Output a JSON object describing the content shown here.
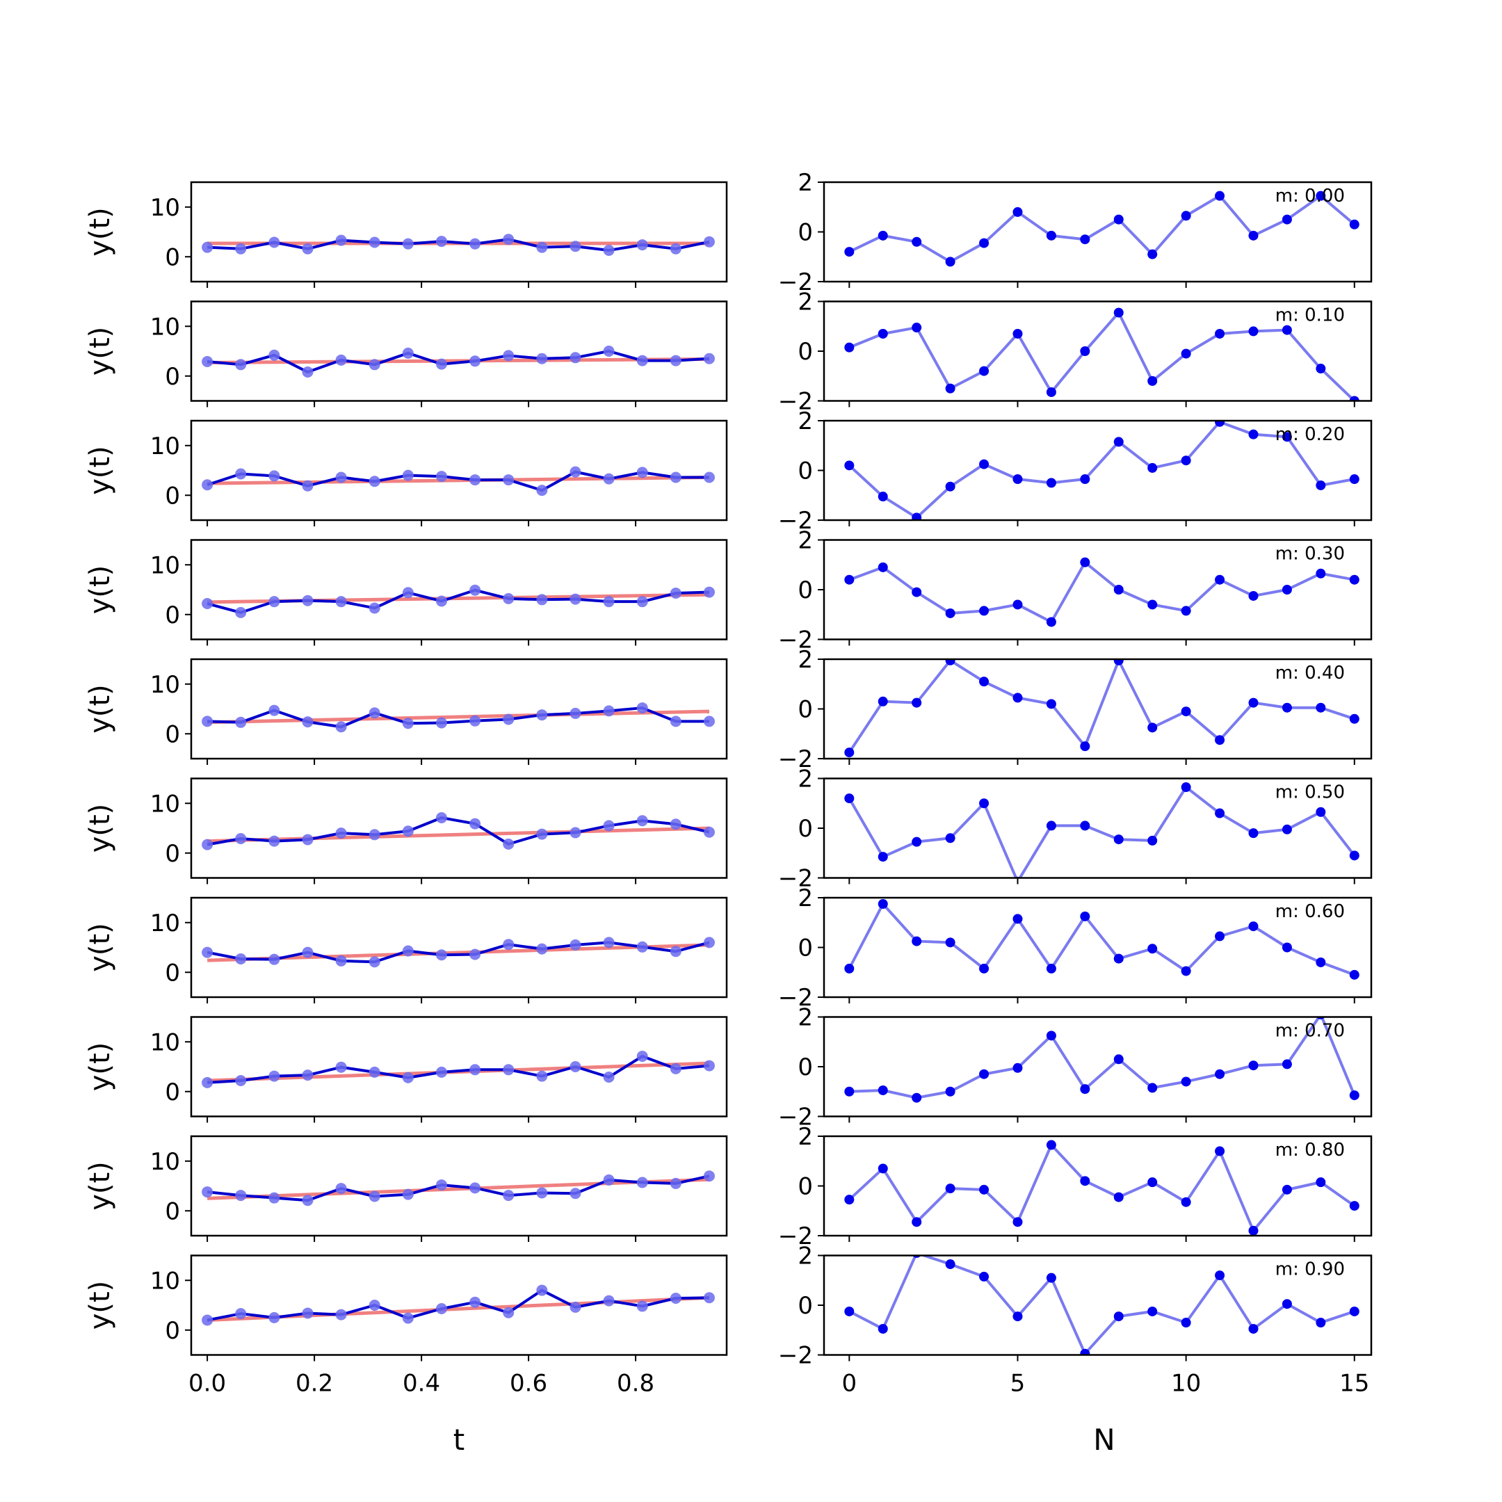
{
  "chart_data": {
    "type": "line",
    "left_panel": {
      "xlabel": "t",
      "ylabel": "y(t)",
      "xlim": [
        -0.03,
        0.97
      ],
      "ylim": [
        -5,
        15
      ],
      "xticks": [
        "0.0",
        "0.2",
        "0.4",
        "0.6",
        "0.8"
      ],
      "yticks": [
        "0",
        "10"
      ],
      "x": [
        0.0,
        0.0625,
        0.125,
        0.1875,
        0.25,
        0.3125,
        0.375,
        0.4375,
        0.5,
        0.5625,
        0.625,
        0.6875,
        0.75,
        0.8125,
        0.875,
        0.9375
      ],
      "fit_color": "#f08080",
      "data_color": "#0000cc",
      "marker_color": "#6a6aee"
    },
    "right_panel": {
      "xlabel": "N",
      "ylim": [
        -2,
        2
      ],
      "xlim": [
        -0.75,
        15.5
      ],
      "xticks": [
        "0",
        "5",
        "10",
        "15"
      ],
      "yticks": [
        "−2",
        "0",
        "2"
      ],
      "x": [
        0,
        1,
        2,
        3,
        4,
        5,
        6,
        7,
        8,
        9,
        10,
        11,
        12,
        13,
        14,
        15
      ],
      "line_color": "#7a7af0",
      "marker_color": "#0000ee"
    },
    "rows": [
      {
        "m_label": "m: 0.00",
        "y": [
          1.9,
          1.6,
          2.9,
          1.6,
          3.3,
          2.9,
          2.6,
          3.1,
          2.6,
          3.5,
          1.9,
          2.1,
          1.3,
          2.4,
          1.6,
          3.0
        ],
        "fit": [
          2.7,
          2.7
        ],
        "residuals": [
          -0.8,
          -0.15,
          -0.4,
          -1.2,
          -0.45,
          0.8,
          -0.15,
          -0.3,
          0.5,
          -0.9,
          0.65,
          1.45,
          -0.15,
          0.5,
          1.45,
          0.3
        ]
      },
      {
        "m_label": "m: 0.10",
        "y": [
          2.9,
          2.3,
          4.2,
          0.8,
          3.2,
          2.3,
          4.6,
          2.4,
          3.0,
          4.1,
          3.5,
          3.7,
          5.0,
          3.1,
          3.1,
          3.5
        ],
        "fit": [
          2.7,
          3.4
        ],
        "residuals": [
          0.15,
          0.7,
          0.95,
          -1.5,
          -0.8,
          0.7,
          -1.65,
          0.0,
          1.55,
          -1.2,
          -0.1,
          0.7,
          0.8,
          0.85,
          -0.7,
          -2.0
        ]
      },
      {
        "m_label": "m: 0.20",
        "y": [
          2.1,
          4.3,
          3.9,
          1.9,
          3.6,
          2.8,
          4.0,
          3.8,
          3.1,
          3.1,
          1.0,
          4.7,
          3.3,
          4.6,
          3.6,
          3.6
        ],
        "fit": [
          2.4,
          3.6
        ],
        "residuals": [
          0.2,
          -1.05,
          -1.9,
          -0.65,
          0.25,
          -0.35,
          -0.5,
          -0.35,
          1.15,
          0.1,
          0.4,
          1.95,
          1.45,
          1.35,
          -0.6,
          -0.35
        ]
      },
      {
        "m_label": "m: 0.30",
        "y": [
          2.2,
          0.4,
          2.6,
          2.8,
          2.6,
          1.3,
          4.4,
          2.7,
          4.9,
          3.2,
          3.0,
          3.1,
          2.6,
          2.6,
          4.3,
          4.5
        ],
        "fit": [
          2.5,
          4.0
        ],
        "residuals": [
          0.4,
          0.9,
          -0.1,
          -0.95,
          -0.85,
          -0.6,
          -1.3,
          1.1,
          0.0,
          -0.6,
          -0.85,
          0.4,
          -0.25,
          0.0,
          0.65,
          0.4
        ]
      },
      {
        "m_label": "m: 0.40",
        "y": [
          2.5,
          2.3,
          4.7,
          2.4,
          1.4,
          4.2,
          2.1,
          2.2,
          2.6,
          2.9,
          3.8,
          4.1,
          4.6,
          5.2,
          2.5,
          2.5
        ],
        "fit": [
          2.3,
          4.5
        ],
        "residuals": [
          -1.75,
          0.3,
          0.25,
          1.95,
          1.1,
          0.45,
          0.2,
          -1.5,
          1.95,
          -0.75,
          -0.1,
          -1.25,
          0.25,
          0.05,
          0.05,
          -0.4
        ]
      },
      {
        "m_label": "m: 0.50",
        "y": [
          1.7,
          2.9,
          2.4,
          2.7,
          4.0,
          3.7,
          4.4,
          7.1,
          5.9,
          1.8,
          3.8,
          4.1,
          5.5,
          6.5,
          5.8,
          4.2
        ],
        "fit": [
          2.4,
          5.0
        ],
        "residuals": [
          1.2,
          -1.15,
          -0.55,
          -0.4,
          1.0,
          -2.15,
          0.1,
          0.1,
          -0.45,
          -0.5,
          1.65,
          0.6,
          -0.2,
          -0.05,
          0.65,
          -1.1
        ]
      },
      {
        "m_label": "m: 0.60",
        "y": [
          4.0,
          2.7,
          2.6,
          4.0,
          2.3,
          2.1,
          4.3,
          3.5,
          3.6,
          5.6,
          4.7,
          5.5,
          6.0,
          5.1,
          4.2,
          6.0
        ],
        "fit": [
          2.4,
          5.5
        ],
        "residuals": [
          -0.85,
          1.75,
          0.25,
          0.2,
          -0.85,
          1.15,
          -0.85,
          1.25,
          -0.45,
          -0.05,
          -0.95,
          0.45,
          0.85,
          0.0,
          -0.6,
          -1.1
        ]
      },
      {
        "m_label": "m: 0.70",
        "y": [
          1.8,
          2.2,
          3.1,
          3.3,
          4.9,
          3.9,
          2.8,
          3.9,
          4.4,
          4.4,
          3.1,
          5.0,
          2.9,
          7.1,
          4.6,
          5.2
        ],
        "fit": [
          2.2,
          5.7
        ],
        "residuals": [
          -1.0,
          -0.95,
          -1.25,
          -1.0,
          -0.3,
          -0.05,
          1.25,
          -0.9,
          0.3,
          -0.85,
          -0.6,
          -0.3,
          0.05,
          0.1,
          2.1,
          -1.15
        ]
      },
      {
        "m_label": "m: 0.80",
        "y": [
          3.8,
          3.1,
          2.6,
          2.1,
          4.5,
          2.9,
          3.3,
          5.2,
          4.6,
          3.1,
          3.6,
          3.5,
          6.2,
          5.7,
          5.5,
          7.0
        ],
        "fit": [
          2.5,
          6.3
        ],
        "residuals": [
          -0.55,
          0.7,
          -1.45,
          -0.1,
          -0.15,
          -1.45,
          1.65,
          0.2,
          -0.45,
          0.15,
          -0.65,
          1.4,
          -1.8,
          -0.15,
          0.15,
          -0.8
        ]
      },
      {
        "m_label": "m: 0.90",
        "y": [
          2.0,
          3.3,
          2.5,
          3.4,
          3.1,
          5.0,
          2.4,
          4.3,
          5.6,
          3.5,
          8.0,
          4.6,
          5.9,
          4.8,
          6.4,
          6.5
        ],
        "fit": [
          2.0,
          6.5
        ],
        "residuals": [
          -0.25,
          -0.95,
          2.1,
          1.65,
          1.15,
          -0.45,
          1.1,
          -1.95,
          -0.45,
          -0.25,
          -0.7,
          1.2,
          -0.95,
          0.05,
          -0.7,
          -0.25
        ]
      }
    ]
  }
}
